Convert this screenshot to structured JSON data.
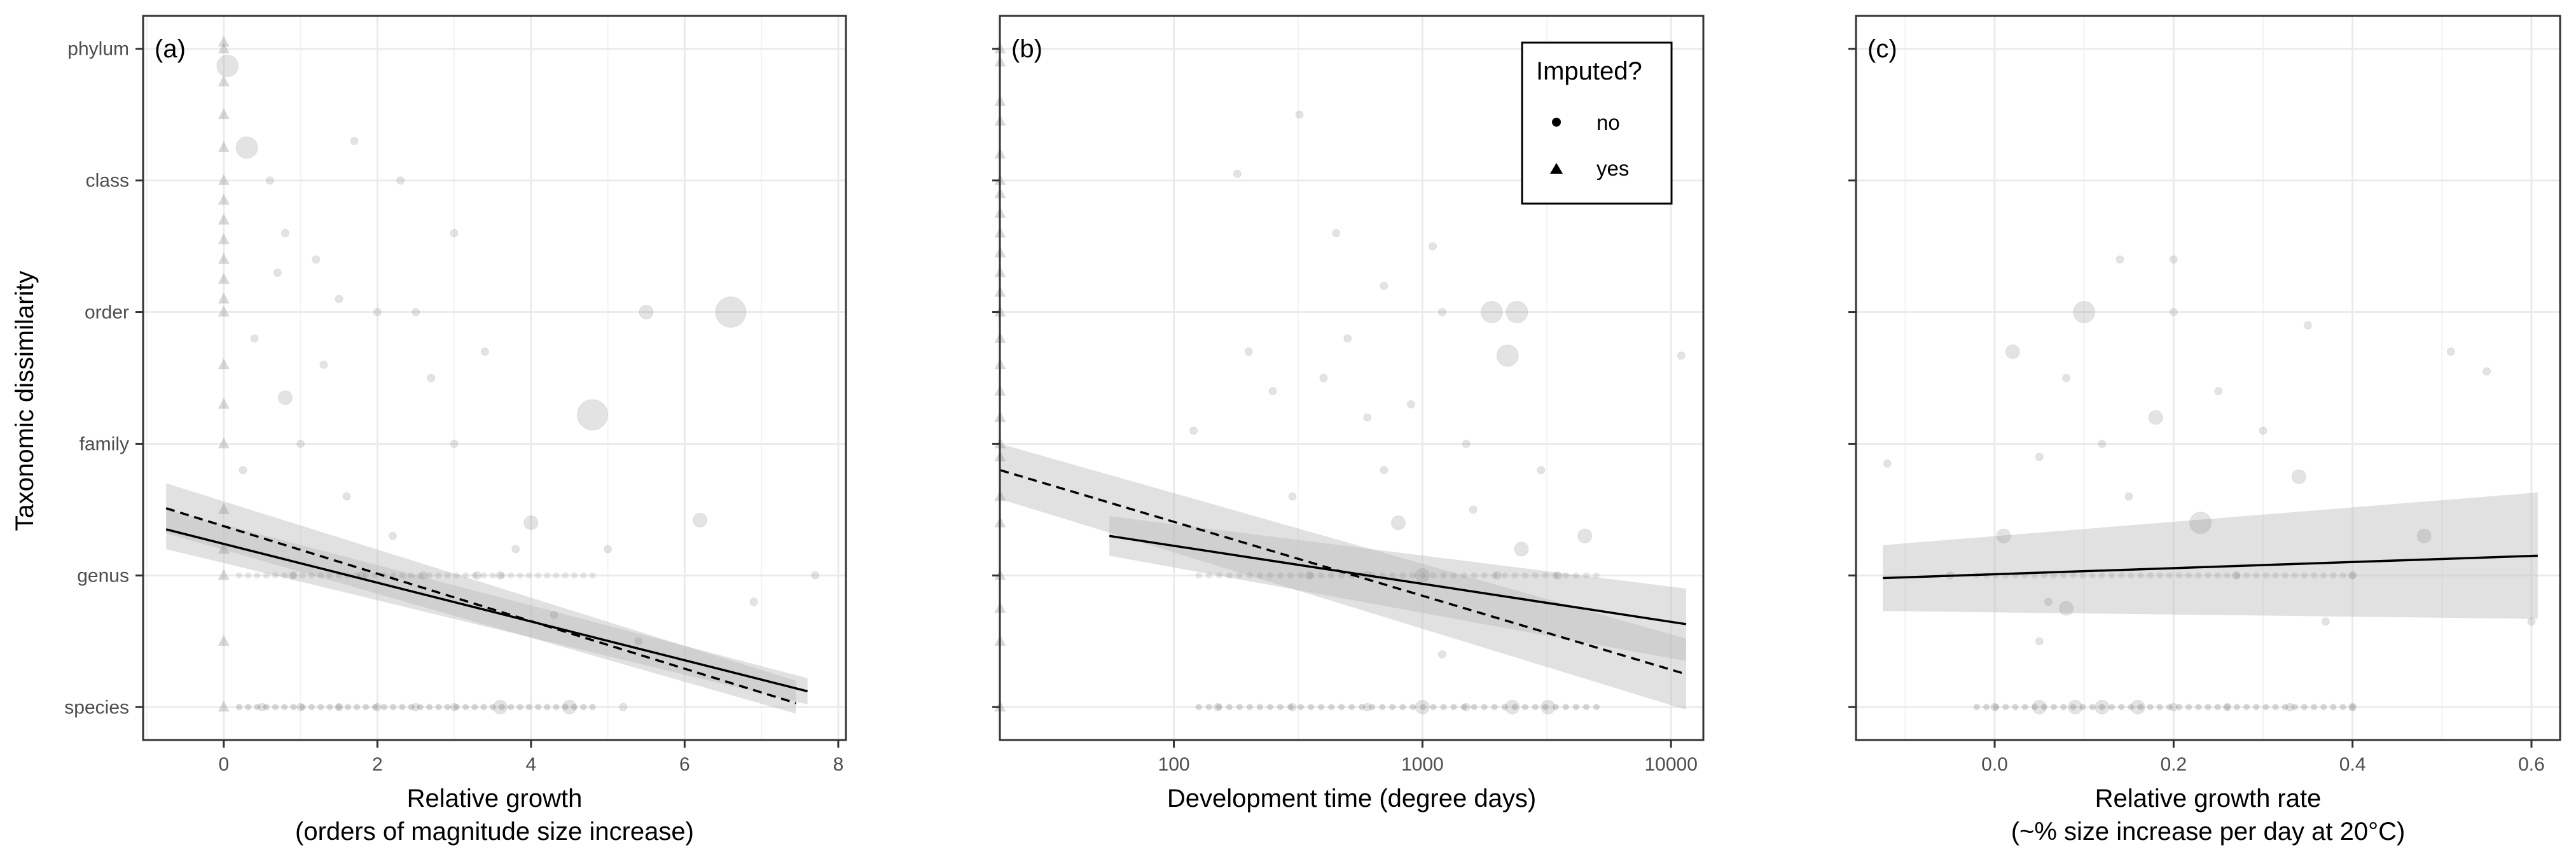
{
  "figure": {
    "ylabel": "Taxonomic dissimilarity",
    "y_categories": [
      "species",
      "genus",
      "family",
      "order",
      "class",
      "phylum"
    ]
  },
  "legend": {
    "title": "Imputed?",
    "entries": [
      {
        "label": "no",
        "shape": "circle"
      },
      {
        "label": "yes",
        "shape": "triangle"
      }
    ]
  },
  "colors": {
    "point": "#7f7f7f",
    "ribbon": "#bdbdbd",
    "line": "#000000",
    "grid": "#ebebeb",
    "frame": "#333333"
  },
  "chart_data": [
    {
      "type": "scatter",
      "panel": "(a)",
      "xlabel": "Relative growth",
      "xlabel2": "(orders of magnitude size increase)",
      "xlim": [
        -1.05,
        8.1
      ],
      "xscale": "linear",
      "xticks": [
        0,
        2,
        4,
        6,
        8
      ],
      "xtick_labels": [
        "0",
        "2",
        "4",
        "6",
        "8"
      ],
      "ylim": [
        0.75,
        6.25
      ],
      "points_triangle": [
        {
          "x": 0,
          "y": 1
        },
        {
          "x": 0,
          "y": 1.5
        },
        {
          "x": 0,
          "y": 2
        },
        {
          "x": 0,
          "y": 2.2
        },
        {
          "x": 0,
          "y": 2.5
        },
        {
          "x": 0,
          "y": 3
        },
        {
          "x": 0,
          "y": 3.3
        },
        {
          "x": 0,
          "y": 3.6
        },
        {
          "x": 0,
          "y": 4
        },
        {
          "x": 0,
          "y": 4.1
        },
        {
          "x": 0,
          "y": 4.25
        },
        {
          "x": 0,
          "y": 4.4
        },
        {
          "x": 0,
          "y": 4.55
        },
        {
          "x": 0,
          "y": 4.7
        },
        {
          "x": 0,
          "y": 4.85
        },
        {
          "x": 0,
          "y": 5
        },
        {
          "x": 0,
          "y": 5.25
        },
        {
          "x": 0,
          "y": 5.5
        },
        {
          "x": 0,
          "y": 5.75
        },
        {
          "x": 0,
          "y": 6
        },
        {
          "x": 0,
          "y": 6.05
        }
      ],
      "points_circle": [
        {
          "x": 0.05,
          "y": 5.87,
          "s": 3
        },
        {
          "x": 0.3,
          "y": 5.25,
          "s": 3
        },
        {
          "x": 0.6,
          "y": 5.0,
          "s": 1
        },
        {
          "x": 0.8,
          "y": 4.6,
          "s": 1
        },
        {
          "x": 1.2,
          "y": 4.4,
          "s": 1
        },
        {
          "x": 1.5,
          "y": 4.1,
          "s": 1
        },
        {
          "x": 2.0,
          "y": 4.0,
          "s": 1
        },
        {
          "x": 2.5,
          "y": 4.0,
          "s": 1
        },
        {
          "x": 5.5,
          "y": 4.0,
          "s": 2
        },
        {
          "x": 6.6,
          "y": 4.0,
          "s": 4
        },
        {
          "x": 4.8,
          "y": 3.22,
          "s": 4
        },
        {
          "x": 0.8,
          "y": 3.35,
          "s": 2
        },
        {
          "x": 3.0,
          "y": 3.0,
          "s": 1
        },
        {
          "x": 1.0,
          "y": 3.0,
          "s": 1
        },
        {
          "x": 4.0,
          "y": 2.4,
          "s": 2
        },
        {
          "x": 6.2,
          "y": 2.42,
          "s": 2
        },
        {
          "x": 3.8,
          "y": 2.2,
          "s": 1
        },
        {
          "x": 1.6,
          "y": 2.6,
          "s": 1
        },
        {
          "x": 2.2,
          "y": 2.3,
          "s": 1
        },
        {
          "x": 5.0,
          "y": 2.2,
          "s": 1
        },
        {
          "x": 7.7,
          "y": 2.0,
          "s": 1
        },
        {
          "x": 6.9,
          "y": 1.8,
          "s": 1
        },
        {
          "x": 0.4,
          "y": 3.8,
          "s": 1
        },
        {
          "x": 1.3,
          "y": 3.6,
          "s": 1
        },
        {
          "x": 2.7,
          "y": 3.5,
          "s": 1
        },
        {
          "x": 3.4,
          "y": 3.7,
          "s": 1
        },
        {
          "x": 0.25,
          "y": 2.8,
          "s": 1
        },
        {
          "x": 0.9,
          "y": 2.0,
          "s": 1
        },
        {
          "x": 1.8,
          "y": 2.0,
          "s": 1
        },
        {
          "x": 2.6,
          "y": 2.0,
          "s": 1
        },
        {
          "x": 3.3,
          "y": 2.0,
          "s": 1
        },
        {
          "x": 3.6,
          "y": 2.0,
          "s": 1
        },
        {
          "x": 4.3,
          "y": 1.7,
          "s": 1
        },
        {
          "x": 5.4,
          "y": 1.5,
          "s": 1
        },
        {
          "x": 0.5,
          "y": 1.0,
          "s": 1
        },
        {
          "x": 1.0,
          "y": 1.0,
          "s": 1
        },
        {
          "x": 1.5,
          "y": 1.0,
          "s": 1
        },
        {
          "x": 2.0,
          "y": 1.0,
          "s": 1
        },
        {
          "x": 2.5,
          "y": 1.0,
          "s": 1
        },
        {
          "x": 3.0,
          "y": 1.0,
          "s": 1
        },
        {
          "x": 3.6,
          "y": 1.0,
          "s": 2
        },
        {
          "x": 4.5,
          "y": 1.0,
          "s": 2
        },
        {
          "x": 5.2,
          "y": 1.0,
          "s": 1
        },
        {
          "x": 2.3,
          "y": 5.0,
          "s": 1
        },
        {
          "x": 1.7,
          "y": 5.3,
          "s": 1
        },
        {
          "x": 0.7,
          "y": 4.3,
          "s": 1
        },
        {
          "x": 3.0,
          "y": 4.6,
          "s": 1
        }
      ],
      "fits": [
        {
          "style": "solid",
          "x": [
            -0.75,
            7.6
          ],
          "y": [
            2.35,
            1.12
          ],
          "ci_lower": [
            2.2,
            1.02
          ],
          "ci_upper": [
            2.5,
            1.22
          ]
        },
        {
          "style": "dashed",
          "x": [
            -0.75,
            7.45
          ],
          "y": [
            2.51,
            1.03
          ],
          "ci_lower": [
            2.32,
            0.95
          ],
          "ci_upper": [
            2.7,
            1.2
          ]
        }
      ]
    },
    {
      "type": "scatter",
      "panel": "(b)",
      "xlabel": "Development time (degree days)",
      "xlim": [
        0,
        1
      ],
      "xscale": "log10",
      "log_range": [
        1.3,
        4.13
      ],
      "xticks": [
        100,
        1000,
        10000
      ],
      "xtick_labels": [
        "100",
        "1000",
        "10000"
      ],
      "ylim": [
        0.75,
        6.25
      ],
      "points_triangle": [
        {
          "x": 20,
          "y": 1
        },
        {
          "x": 20,
          "y": 1.5
        },
        {
          "x": 20,
          "y": 1.75
        },
        {
          "x": 20,
          "y": 2
        },
        {
          "x": 20,
          "y": 2.4
        },
        {
          "x": 20,
          "y": 2.6
        },
        {
          "x": 20,
          "y": 2.9
        },
        {
          "x": 20,
          "y": 3
        },
        {
          "x": 20,
          "y": 3.2
        },
        {
          "x": 20,
          "y": 3.4
        },
        {
          "x": 20,
          "y": 3.6
        },
        {
          "x": 20,
          "y": 3.8
        },
        {
          "x": 20,
          "y": 4
        },
        {
          "x": 20,
          "y": 4.15
        },
        {
          "x": 20,
          "y": 4.3
        },
        {
          "x": 20,
          "y": 4.45
        },
        {
          "x": 20,
          "y": 4.6
        },
        {
          "x": 20,
          "y": 4.75
        },
        {
          "x": 20,
          "y": 4.9
        },
        {
          "x": 20,
          "y": 5
        },
        {
          "x": 20,
          "y": 5.2
        },
        {
          "x": 20,
          "y": 5.45
        },
        {
          "x": 20,
          "y": 5.6
        },
        {
          "x": 20,
          "y": 5.9
        },
        {
          "x": 20,
          "y": 6
        }
      ],
      "points_circle": [
        {
          "x": 320,
          "y": 5.5,
          "s": 1
        },
        {
          "x": 180,
          "y": 5.05,
          "s": 1
        },
        {
          "x": 2400,
          "y": 4.0,
          "s": 3
        },
        {
          "x": 1900,
          "y": 4.0,
          "s": 3
        },
        {
          "x": 2200,
          "y": 3.67,
          "s": 3
        },
        {
          "x": 11000,
          "y": 3.67,
          "s": 1
        },
        {
          "x": 1500,
          "y": 3.0,
          "s": 1
        },
        {
          "x": 800,
          "y": 2.4,
          "s": 2
        },
        {
          "x": 2500,
          "y": 2.2,
          "s": 2
        },
        {
          "x": 400,
          "y": 3.5,
          "s": 1
        },
        {
          "x": 600,
          "y": 3.2,
          "s": 1
        },
        {
          "x": 120,
          "y": 3.1,
          "s": 1
        },
        {
          "x": 250,
          "y": 3.4,
          "s": 1
        },
        {
          "x": 500,
          "y": 3.8,
          "s": 1
        },
        {
          "x": 900,
          "y": 3.3,
          "s": 1
        },
        {
          "x": 1200,
          "y": 4.0,
          "s": 1
        },
        {
          "x": 300,
          "y": 2.6,
          "s": 1
        },
        {
          "x": 700,
          "y": 2.8,
          "s": 1
        },
        {
          "x": 1600,
          "y": 2.5,
          "s": 1
        },
        {
          "x": 3000,
          "y": 2.8,
          "s": 1
        },
        {
          "x": 4500,
          "y": 2.3,
          "s": 2
        },
        {
          "x": 350,
          "y": 2.0,
          "s": 1
        },
        {
          "x": 600,
          "y": 2.0,
          "s": 1
        },
        {
          "x": 1000,
          "y": 2.0,
          "s": 2
        },
        {
          "x": 2000,
          "y": 2.0,
          "s": 1
        },
        {
          "x": 3500,
          "y": 2.0,
          "s": 1
        },
        {
          "x": 1200,
          "y": 1.4,
          "s": 1
        },
        {
          "x": 150,
          "y": 1.0,
          "s": 1
        },
        {
          "x": 300,
          "y": 1.0,
          "s": 1
        },
        {
          "x": 600,
          "y": 1.0,
          "s": 1
        },
        {
          "x": 1000,
          "y": 1.0,
          "s": 2
        },
        {
          "x": 1500,
          "y": 1.0,
          "s": 1
        },
        {
          "x": 2300,
          "y": 1.0,
          "s": 2
        },
        {
          "x": 3200,
          "y": 1.0,
          "s": 2
        },
        {
          "x": 450,
          "y": 4.6,
          "s": 1
        },
        {
          "x": 700,
          "y": 4.2,
          "s": 1
        },
        {
          "x": 1100,
          "y": 4.5,
          "s": 1
        },
        {
          "x": 200,
          "y": 3.7,
          "s": 1
        }
      ],
      "fits": [
        {
          "style": "solid",
          "x": [
            55,
            11500
          ],
          "y": [
            2.3,
            1.63
          ],
          "ci_lower": [
            2.15,
            1.35
          ],
          "ci_upper": [
            2.45,
            1.9
          ]
        },
        {
          "style": "dashed",
          "x": [
            20,
            11500
          ],
          "y": [
            2.8,
            1.25
          ],
          "ci_lower": [
            2.58,
            0.98
          ],
          "ci_upper": [
            3.0,
            1.52
          ]
        }
      ]
    },
    {
      "type": "scatter",
      "panel": "(c)",
      "xlabel": "Relative growth rate",
      "xlabel2": "(~% size increase per day at 20°C)",
      "xlim": [
        -0.155,
        0.632
      ],
      "xscale": "linear",
      "xticks": [
        0.0,
        0.2,
        0.4,
        0.6
      ],
      "xtick_labels": [
        "0.0",
        "0.2",
        "0.4",
        "0.6"
      ],
      "ylim": [
        0.75,
        6.25
      ],
      "points_triangle": [],
      "points_circle": [
        {
          "x": 0.1,
          "y": 4.0,
          "s": 3
        },
        {
          "x": 0.2,
          "y": 4.0,
          "s": 1
        },
        {
          "x": 0.14,
          "y": 4.4,
          "s": 1
        },
        {
          "x": 0.2,
          "y": 4.4,
          "s": 1
        },
        {
          "x": 0.51,
          "y": 3.7,
          "s": 1
        },
        {
          "x": 0.55,
          "y": 3.55,
          "s": 1
        },
        {
          "x": 0.02,
          "y": 3.7,
          "s": 2
        },
        {
          "x": 0.18,
          "y": 3.2,
          "s": 2
        },
        {
          "x": 0.23,
          "y": 2.4,
          "s": 3
        },
        {
          "x": 0.34,
          "y": 2.75,
          "s": 2
        },
        {
          "x": 0.48,
          "y": 2.3,
          "s": 2
        },
        {
          "x": 0.01,
          "y": 2.3,
          "s": 2
        },
        {
          "x": -0.12,
          "y": 2.85,
          "s": 1
        },
        {
          "x": 0.06,
          "y": 1.8,
          "s": 1
        },
        {
          "x": 0.08,
          "y": 1.75,
          "s": 2
        },
        {
          "x": 0.05,
          "y": 1.5,
          "s": 1
        },
        {
          "x": 0.37,
          "y": 1.65,
          "s": 1
        },
        {
          "x": 0.6,
          "y": 1.65,
          "s": 1
        },
        {
          "x": 0.05,
          "y": 2.9,
          "s": 1
        },
        {
          "x": 0.12,
          "y": 3.0,
          "s": 1
        },
        {
          "x": 0.25,
          "y": 3.4,
          "s": 1
        },
        {
          "x": 0.3,
          "y": 3.1,
          "s": 1
        },
        {
          "x": 0.08,
          "y": 3.5,
          "s": 1
        },
        {
          "x": 0.15,
          "y": 2.6,
          "s": 1
        },
        {
          "x": 0.27,
          "y": 2.0,
          "s": 1
        },
        {
          "x": 0.4,
          "y": 2.0,
          "s": 1
        },
        {
          "x": -0.05,
          "y": 2.0,
          "s": 1
        },
        {
          "x": 0.35,
          "y": 3.9,
          "s": 1
        },
        {
          "x": 0.0,
          "y": 1.0,
          "s": 1
        },
        {
          "x": 0.05,
          "y": 1.0,
          "s": 2
        },
        {
          "x": 0.09,
          "y": 1.0,
          "s": 2
        },
        {
          "x": 0.12,
          "y": 1.0,
          "s": 2
        },
        {
          "x": 0.16,
          "y": 1.0,
          "s": 2
        },
        {
          "x": 0.2,
          "y": 1.0,
          "s": 1
        },
        {
          "x": 0.26,
          "y": 1.0,
          "s": 1
        },
        {
          "x": 0.33,
          "y": 1.0,
          "s": 1
        },
        {
          "x": 0.4,
          "y": 1.0,
          "s": 1
        }
      ],
      "fits": [
        {
          "style": "solid",
          "x": [
            -0.125,
            0.607
          ],
          "y": [
            1.98,
            2.15
          ],
          "ci_lower": [
            1.73,
            1.67
          ],
          "ci_upper": [
            2.23,
            2.63
          ]
        }
      ]
    }
  ]
}
